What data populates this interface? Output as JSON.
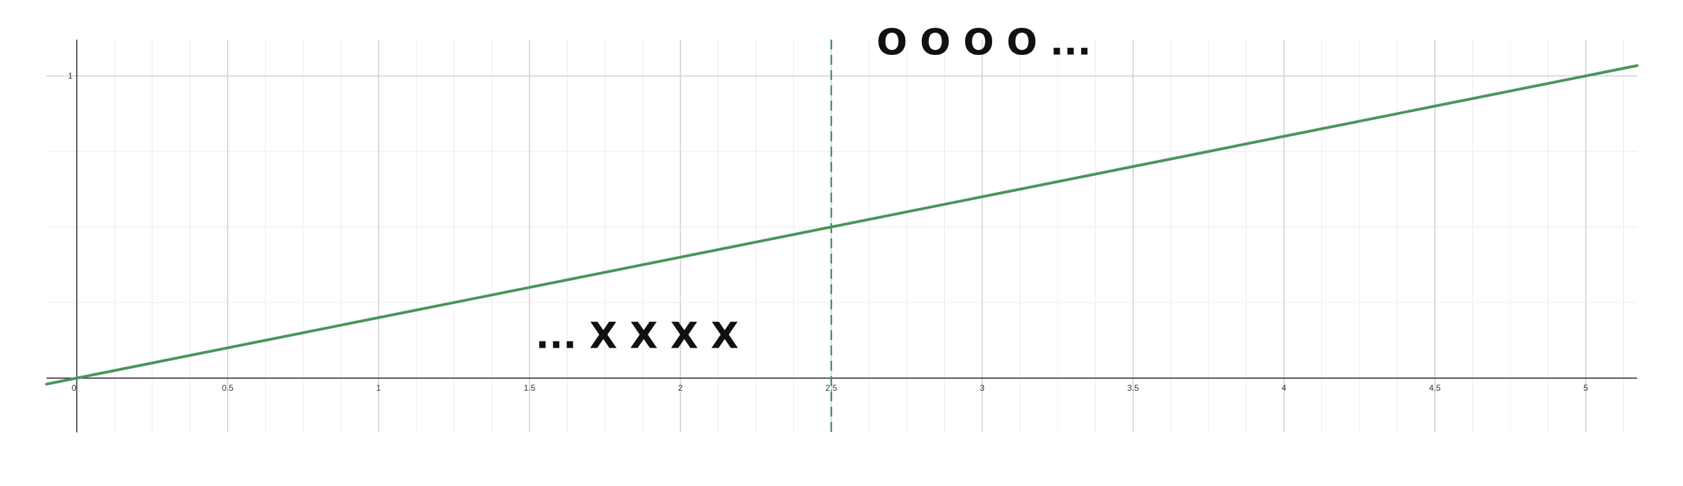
{
  "chart_data": {
    "type": "line",
    "xlim": [
      -0.1,
      5.17
    ],
    "ylim": [
      -0.18,
      1.12
    ],
    "grid": true,
    "minor_grid": true,
    "x_ticks": [
      0,
      0.5,
      1,
      1.5,
      2,
      2.5,
      3,
      3.5,
      4,
      4.5,
      5
    ],
    "x_tick_labels": [
      "0",
      "0.5",
      "1",
      "1.5",
      "2",
      "2.5",
      "3",
      "3.5",
      "4",
      "4.5",
      "5"
    ],
    "y_ticks": [
      1
    ],
    "y_tick_labels": [
      "1"
    ],
    "series": [
      {
        "style": "solid",
        "color": "#4a955a",
        "x": [
          -0.1,
          5.17
        ],
        "y": [
          -0.02,
          1.034
        ]
      }
    ],
    "reference_lines": [
      {
        "orientation": "vertical",
        "x": 2.5,
        "style": "dashed",
        "color": "#4a955a"
      }
    ],
    "annotations": [
      {
        "text": "O O O O ...",
        "x": 2.65,
        "y": 1.07
      },
      {
        "text": "... X X X X",
        "x": 1.52,
        "y": 0.1
      }
    ]
  }
}
